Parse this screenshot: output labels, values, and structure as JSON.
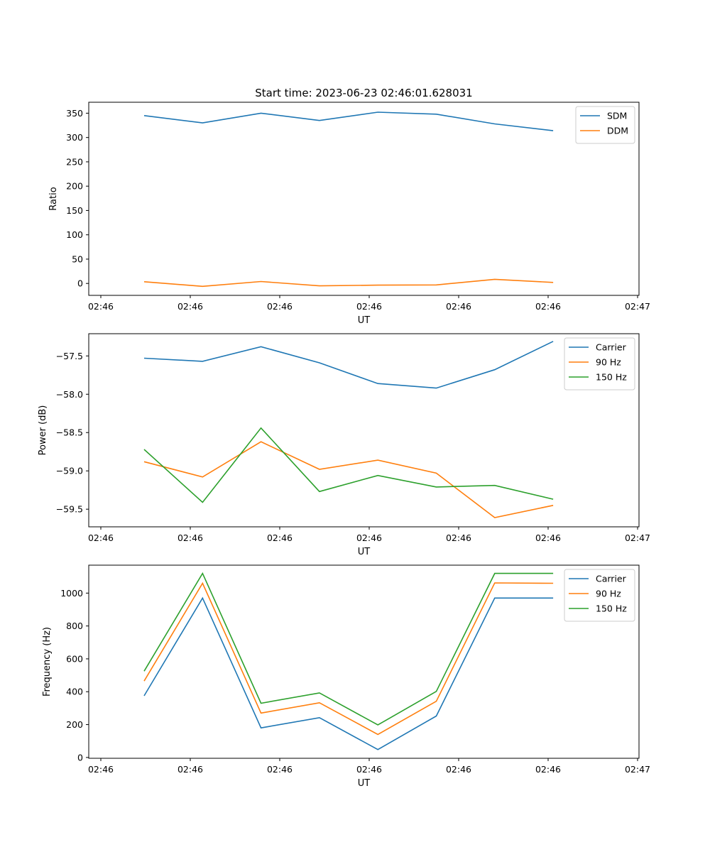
{
  "figure": {
    "title": "Start time: 2023-06-23 02:46:01.628031"
  },
  "chart_data": [
    {
      "type": "line",
      "xlabel": "UT",
      "ylabel": "Ratio",
      "x_tick_labels": [
        "02:46",
        "02:46",
        "02:46",
        "02:46",
        "02:46",
        "02:46",
        "02:47"
      ],
      "y_ticks": [
        0,
        50,
        100,
        150,
        200,
        250,
        300,
        350
      ],
      "ylim": [
        -24.5,
        372.5
      ],
      "grid": false,
      "legend_position": "upper right",
      "series": [
        {
          "name": "SDM",
          "color": "#1f77b4",
          "values": [
            345,
            330,
            350,
            335,
            352,
            348,
            328,
            314
          ]
        },
        {
          "name": "DDM",
          "color": "#ff7f0e",
          "values": [
            3.5,
            -6,
            4,
            -5,
            -3.5,
            -3,
            8.5,
            2
          ]
        }
      ]
    },
    {
      "type": "line",
      "xlabel": "UT",
      "ylabel": "Power (dB)",
      "x_tick_labels": [
        "02:46",
        "02:46",
        "02:46",
        "02:46",
        "02:46",
        "02:46",
        "02:47"
      ],
      "y_ticks": [
        -57.5,
        -58.0,
        -58.5,
        -59.0,
        -59.5
      ],
      "y_tick_labels": [
        "−57.5",
        "−58.0",
        "−58.5",
        "−59.0",
        "−59.5"
      ],
      "ylim": [
        -59.73,
        -57.21
      ],
      "grid": false,
      "legend_position": "upper right",
      "series": [
        {
          "name": "Carrier",
          "color": "#1f77b4",
          "values": [
            -57.53,
            -57.57,
            -57.38,
            -57.59,
            -57.86,
            -57.92,
            -57.68,
            -57.31
          ]
        },
        {
          "name": "90 Hz",
          "color": "#ff7f0e",
          "values": [
            -58.88,
            -59.08,
            -58.62,
            -58.98,
            -58.86,
            -59.03,
            -59.61,
            -59.45
          ]
        },
        {
          "name": "150 Hz",
          "color": "#2ca02c",
          "values": [
            -58.72,
            -59.41,
            -58.44,
            -59.27,
            -59.06,
            -59.21,
            -59.19,
            -59.37
          ]
        }
      ]
    },
    {
      "type": "line",
      "xlabel": "UT",
      "ylabel": "Frequency (Hz)",
      "x_tick_labels": [
        "02:46",
        "02:46",
        "02:46",
        "02:46",
        "02:46",
        "02:46",
        "02:47"
      ],
      "y_ticks": [
        0,
        200,
        400,
        600,
        800,
        1000
      ],
      "ylim": [
        -5,
        1170
      ],
      "grid": false,
      "legend_position": "upper right",
      "series": [
        {
          "name": "Carrier",
          "color": "#1f77b4",
          "values": [
            375,
            970,
            180,
            242,
            48,
            252,
            970,
            970
          ]
        },
        {
          "name": "90 Hz",
          "color": "#ff7f0e",
          "values": [
            465,
            1060,
            270,
            333,
            140,
            342,
            1062,
            1060
          ]
        },
        {
          "name": "150 Hz",
          "color": "#2ca02c",
          "values": [
            525,
            1120,
            330,
            393,
            198,
            402,
            1120,
            1120
          ]
        }
      ]
    }
  ]
}
